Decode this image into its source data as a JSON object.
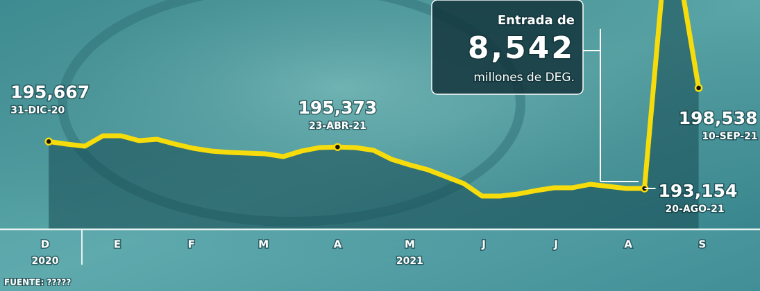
{
  "chart_data": {
    "type": "line",
    "x": [
      0,
      1,
      2,
      3,
      4,
      5,
      6,
      7,
      8,
      9,
      10,
      11,
      12,
      13,
      14,
      15,
      16,
      17,
      18,
      19,
      20,
      21,
      22,
      23,
      24,
      25,
      26,
      27,
      28,
      29,
      30,
      31,
      32,
      33,
      34,
      35,
      36
    ],
    "series": [
      {
        "color": "#f7dc0c",
        "values": [
          195667,
          195529,
          195418,
          195974,
          195974,
          195715,
          195789,
          195529,
          195306,
          195158,
          195084,
          195047,
          195010,
          194861,
          195158,
          195343,
          195373,
          195343,
          195195,
          194713,
          194416,
          194156,
          193785,
          193413,
          192745,
          192745,
          192856,
          193042,
          193190,
          193190,
          193376,
          193265,
          193153,
          193154,
          204000,
          204300,
          198538
        ],
        "value_labels": [
          "195,667",
          null,
          null,
          null,
          null,
          null,
          null,
          null,
          null,
          null,
          null,
          null,
          null,
          null,
          null,
          null,
          "195,373",
          null,
          null,
          null,
          null,
          null,
          null,
          null,
          null,
          null,
          null,
          null,
          null,
          null,
          null,
          null,
          null,
          "193,154",
          null,
          null,
          "198,538"
        ],
        "date_labels": [
          "31-DIC-20",
          null,
          null,
          null,
          null,
          null,
          null,
          null,
          null,
          null,
          null,
          null,
          null,
          null,
          null,
          null,
          "23-ABR-21",
          null,
          null,
          null,
          null,
          null,
          null,
          null,
          null,
          null,
          null,
          null,
          null,
          null,
          null,
          null,
          null,
          "20-AGO-21",
          null,
          null,
          "10-SEP-21"
        ]
      }
    ],
    "xlim": [
      -2.7,
      39.4
    ],
    "ylim": [
      191000,
      203250
    ],
    "xticks": [
      {
        "value": -0.2,
        "label": "D"
      },
      {
        "value": 3.8,
        "label": "E"
      },
      {
        "value": 7.9,
        "label": "F"
      },
      {
        "value": 11.9,
        "label": "M"
      },
      {
        "value": 16,
        "label": "A"
      },
      {
        "value": 20,
        "label": "M"
      },
      {
        "value": 24.1,
        "label": "J"
      },
      {
        "value": 28.1,
        "label": "J"
      },
      {
        "value": 32.1,
        "label": "A"
      },
      {
        "value": 36.2,
        "label": "S"
      }
    ],
    "year_labels": [
      {
        "value": -0.2,
        "label": "2020"
      },
      {
        "value": 20,
        "label": "2021"
      }
    ],
    "callout": {
      "title": "Entrada de",
      "value": 8542,
      "value_label": "8,542",
      "unit": "millones de DEG."
    },
    "source": "FUENTE: ?????"
  }
}
